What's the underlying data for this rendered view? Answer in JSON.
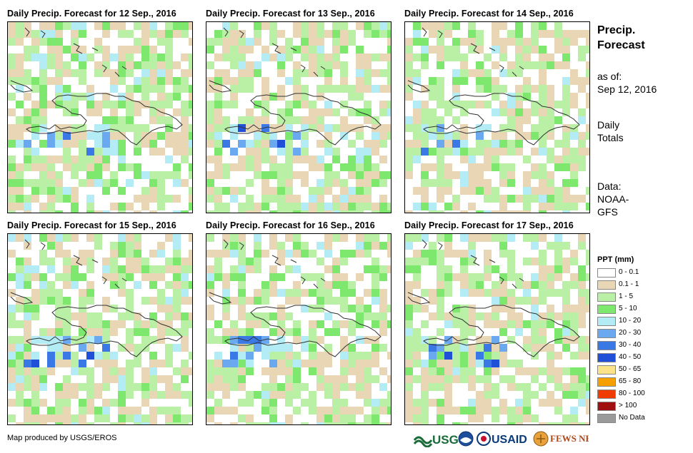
{
  "panels": [
    {
      "title": "Daily Precip. Forecast for 12 Sep., 2016",
      "seed": 12
    },
    {
      "title": "Daily Precip. Forecast for 13 Sep., 2016",
      "seed": 13
    },
    {
      "title": "Daily Precip. Forecast for 14 Sep., 2016",
      "seed": 14
    },
    {
      "title": "Daily Precip. Forecast for 15 Sep., 2016",
      "seed": 15
    },
    {
      "title": "Daily Precip. Forecast for 16 Sep., 2016",
      "seed": 16
    },
    {
      "title": "Daily Precip. Forecast for 17 Sep., 2016",
      "seed": 17
    }
  ],
  "side": {
    "heading_line1": "Precip.",
    "heading_line2": "Forecast",
    "asof_label": "as of:",
    "asof_date": "Sep 12, 2016",
    "totals_line1": "Daily",
    "totals_line2": "Totals",
    "data_label": "Data:",
    "data_source_line1": "NOAA-",
    "data_source_line2": "GFS"
  },
  "legend": {
    "title": "PPT (mm)",
    "items": [
      {
        "label": "0 - 0.1",
        "color": "#ffffff"
      },
      {
        "label": "0.1 - 1",
        "color": "#e8d6b4"
      },
      {
        "label": "1 - 5",
        "color": "#b9f0a6"
      },
      {
        "label": "5 - 10",
        "color": "#7ee86e"
      },
      {
        "label": "10 - 20",
        "color": "#b3ecf4"
      },
      {
        "label": "20 - 30",
        "color": "#6aa8f0"
      },
      {
        "label": "30 - 40",
        "color": "#3a78e6"
      },
      {
        "label": "40 - 50",
        "color": "#2050d8"
      },
      {
        "label": "50 - 65",
        "color": "#fbe38a"
      },
      {
        "label": "65 - 80",
        "color": "#f6a000"
      },
      {
        "label": "80 - 100",
        "color": "#f03c00"
      },
      {
        "label": "> 100",
        "color": "#a01010"
      },
      {
        "label": "No Data",
        "color": "#9a9a9a"
      }
    ]
  },
  "footer": {
    "credit": "Map produced by USGS/EROS",
    "logos": [
      "USGS",
      "NOAA",
      "USAID",
      "FEWS NET"
    ]
  }
}
